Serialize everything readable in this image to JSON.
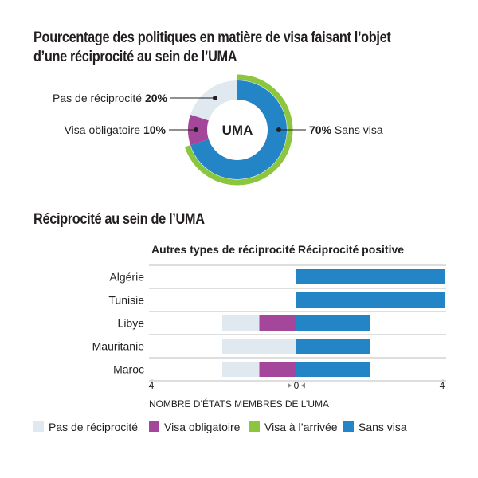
{
  "colors": {
    "pas_de_reciprocite": "#dfe9ef",
    "visa_obligatoire": "#a4479b",
    "visa_a_larrivee": "#8cc63f",
    "sans_visa": "#2384c6",
    "text": "#231f20",
    "grid": "#bdbdbd"
  },
  "header": {
    "title_line1": "Pourcentage des politiques en matière de visa faisant l’objet",
    "title_line2": "d’une réciprocité au sein de  l’UMA"
  },
  "chart_data": [
    {
      "type": "pie",
      "title": "Pourcentage des politiques en matière de visa faisant l’objet d’une réciprocité au sein de  l’UMA",
      "center_label": "UMA",
      "slices": [
        {
          "label": "Sans visa",
          "value": 70,
          "value_label": "70%",
          "color": "#2384c6"
        },
        {
          "label": "Visa obligatoire",
          "value": 10,
          "value_label": "10%",
          "color": "#a4479b"
        },
        {
          "label": "Pas de réciprocité",
          "value": 20,
          "value_label": "20%",
          "color": "#dfe9ef"
        }
      ],
      "outer_ring": {
        "label": "Visa à l’arrivée",
        "color": "#8cc63f"
      }
    },
    {
      "type": "bar",
      "orientation": "horizontal-diverging",
      "title": "Réciprocité au sein de l’UMA",
      "left_header": "Autres types de réciprocité",
      "right_header": "Réciprocité positive",
      "xlabel": "NOMBRE D’ÉTATS MEMBRES DE L’UMA",
      "x_ticks": [
        {
          "value": -4,
          "label": "4"
        },
        {
          "value": 0,
          "label": "0"
        },
        {
          "value": 4,
          "label": "4"
        }
      ],
      "xlim": [
        -4,
        4
      ],
      "categories": [
        "Algérie",
        "Tunisie",
        "Libye",
        "Mauritanie",
        "Maroc"
      ],
      "series": [
        {
          "name": "Pas de réciprocité",
          "side": "left",
          "color": "#dfe9ef",
          "values": [
            0,
            0,
            1,
            2,
            1
          ]
        },
        {
          "name": "Visa obligatoire",
          "side": "left",
          "color": "#a4479b",
          "values": [
            0,
            0,
            1,
            0,
            1
          ]
        },
        {
          "name": "Sans visa",
          "side": "right",
          "color": "#2384c6",
          "values": [
            4,
            4,
            2,
            2,
            2
          ]
        }
      ],
      "legend": {
        "position": "bottom",
        "entries": [
          {
            "label": "Pas de réciprocité",
            "color": "#dfe9ef"
          },
          {
            "label": "Visa obligatoire",
            "color": "#a4479b"
          },
          {
            "label": "Visa à l’arrivée",
            "color": "#8cc63f"
          },
          {
            "label": "Sans visa",
            "color": "#2384c6"
          }
        ]
      }
    }
  ]
}
